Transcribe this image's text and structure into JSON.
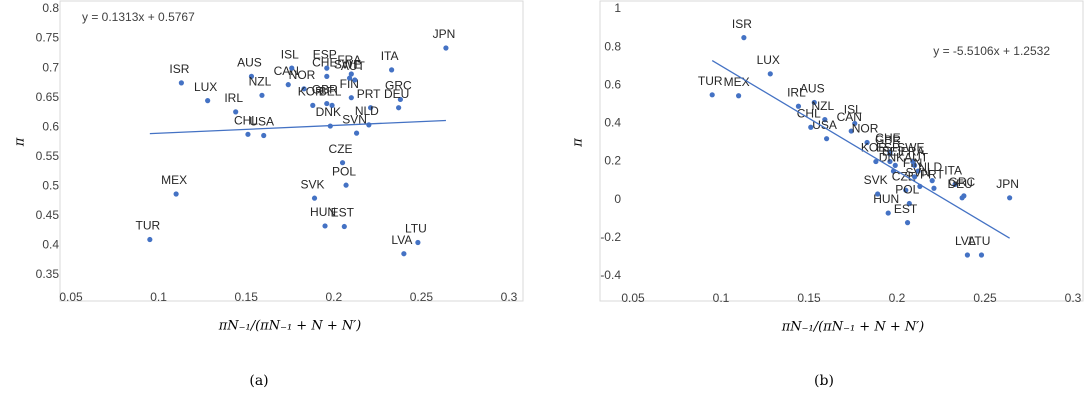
{
  "chart_data": [
    {
      "type": "scatter",
      "caption": "(a)",
      "x_label": "πN₋₁/(πN₋₁ + N + N′)",
      "y_label": "π",
      "color": "#4472c4",
      "labels": [
        "TUR",
        "MEX",
        "ISR",
        "LUX",
        "IRL",
        "CHL",
        "AUS",
        "NZL",
        "USA",
        "CAN",
        "ISL",
        "NOR",
        "GBR",
        "KOR",
        "CHE",
        "ESP",
        "BEL",
        "DNK",
        "SVK",
        "HUN",
        "CZE",
        "POL",
        "EST",
        "FRA",
        "FIN",
        "SWE",
        "AUT",
        "SVN",
        "PRT",
        "NLD",
        "ITA",
        "GRC",
        "DEU",
        "LVA",
        "LTU",
        "JPN"
      ],
      "x": [
        0.095,
        0.11,
        0.113,
        0.128,
        0.144,
        0.151,
        0.153,
        0.159,
        0.16,
        0.174,
        0.176,
        0.183,
        0.196,
        0.188,
        0.196,
        0.196,
        0.199,
        0.198,
        0.189,
        0.195,
        0.205,
        0.207,
        0.206,
        0.21,
        0.21,
        0.209,
        0.212,
        0.213,
        0.221,
        0.22,
        0.233,
        0.238,
        0.237,
        0.24,
        0.248,
        0.264
      ],
      "values": [
        0.41,
        0.487,
        0.675,
        0.645,
        0.626,
        0.588,
        0.686,
        0.654,
        0.586,
        0.672,
        0.7,
        0.665,
        0.64,
        0.637,
        0.686,
        0.7,
        0.637,
        0.602,
        0.48,
        0.433,
        0.54,
        0.502,
        0.432,
        0.69,
        0.65,
        0.683,
        0.68,
        0.59,
        0.633,
        0.604,
        0.697,
        0.647,
        0.633,
        0.386,
        0.405,
        0.734
      ],
      "xlim": [
        0.05,
        0.3
      ],
      "xticks": [
        0.05,
        0.1,
        0.15,
        0.2,
        0.25,
        0.3
      ],
      "ylim": [
        0.35,
        0.8
      ],
      "yticks": [
        0.35,
        0.4,
        0.45,
        0.5,
        0.55,
        0.6,
        0.65,
        0.7,
        0.75,
        0.8
      ],
      "trendline": {
        "slope": 0.1313,
        "intercept": 0.5767,
        "label": "y = 0.1313x + 0.5767"
      }
    },
    {
      "type": "scatter",
      "caption": "(b)",
      "x_label": "πN₋₁/(πN₋₁ + N + N′)",
      "y_label": "π",
      "color": "#4472c4",
      "labels": [
        "TUR",
        "MEX",
        "ISR",
        "LUX",
        "IRL",
        "CHL",
        "AUS",
        "NZL",
        "USA",
        "CAN",
        "ISL",
        "NOR",
        "GBR",
        "KOR",
        "CHE",
        "ESP",
        "BEL",
        "DNK",
        "SVK",
        "HUN",
        "CZE",
        "POL",
        "EST",
        "FRA",
        "FIN",
        "SWE",
        "AUT",
        "SVN",
        "PRT",
        "NLD",
        "ITA",
        "GRC",
        "DEU",
        "LVA",
        "LTU",
        "JPN"
      ],
      "x": [
        0.095,
        0.11,
        0.113,
        0.128,
        0.144,
        0.151,
        0.153,
        0.159,
        0.16,
        0.174,
        0.176,
        0.183,
        0.196,
        0.188,
        0.196,
        0.196,
        0.199,
        0.198,
        0.189,
        0.195,
        0.205,
        0.207,
        0.206,
        0.21,
        0.21,
        0.209,
        0.212,
        0.213,
        0.221,
        0.22,
        0.233,
        0.238,
        0.237,
        0.24,
        0.248,
        0.264
      ],
      "values": [
        0.55,
        0.545,
        0.85,
        0.66,
        0.49,
        0.38,
        0.51,
        0.42,
        0.32,
        0.36,
        0.4,
        0.3,
        0.24,
        0.2,
        0.25,
        0.2,
        0.18,
        0.15,
        0.03,
        -0.07,
        0.05,
        -0.02,
        -0.12,
        0.18,
        0.12,
        0.2,
        0.15,
        0.07,
        0.06,
        0.1,
        0.08,
        0.02,
        0.01,
        -0.29,
        -0.29,
        0.01
      ],
      "xlim": [
        0.05,
        0.3
      ],
      "xticks": [
        0.05,
        0.1,
        0.15,
        0.2,
        0.25,
        0.3
      ],
      "ylim": [
        -0.4,
        1
      ],
      "yticks": [
        -0.4,
        -0.2,
        0,
        0.2,
        0.4,
        0.6,
        0.8,
        1
      ],
      "trendline": {
        "slope": -5.5106,
        "intercept": 1.2532,
        "label": "y = -5.5106x + 1.2532"
      }
    }
  ]
}
